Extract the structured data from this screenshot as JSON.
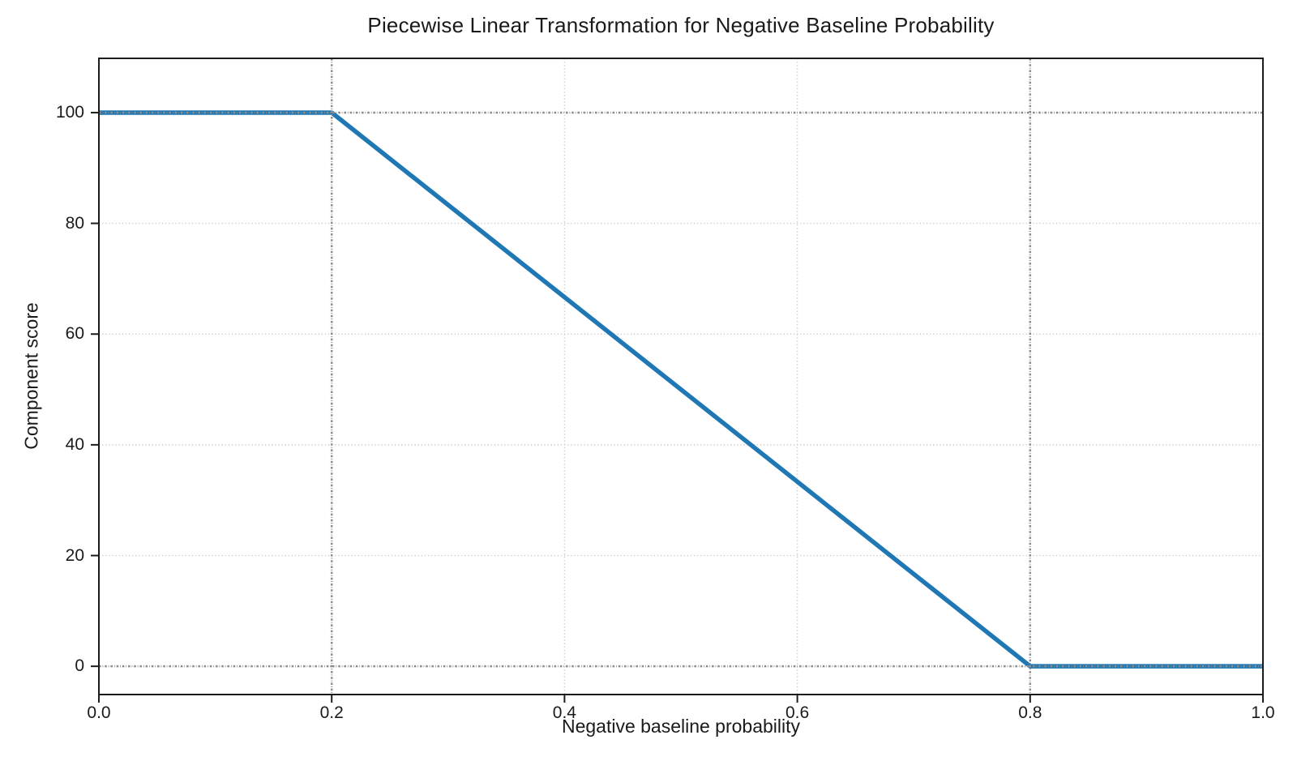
{
  "chart_data": {
    "type": "line",
    "title": "Piecewise Linear Transformation for Negative Baseline Probability",
    "xlabel": "Negative baseline probability",
    "ylabel": "Component score",
    "series": [
      {
        "name": "component_score",
        "x": [
          0.0,
          0.2,
          0.8,
          1.0
        ],
        "y": [
          100,
          100,
          0,
          0
        ],
        "color": "#1f77b4",
        "line_width": 5.5,
        "style": "solid"
      }
    ],
    "xlim": [
      0,
      1
    ],
    "ylim": [
      -5.1,
      109.8
    ],
    "x_ticks": [
      0.0,
      0.2,
      0.4,
      0.6,
      0.8,
      1.0
    ],
    "x_tick_labels": [
      "0.0",
      "0.2",
      "0.4",
      "0.6",
      "0.8",
      "1.0"
    ],
    "y_ticks": [
      0,
      20,
      40,
      60,
      80,
      100
    ],
    "y_tick_labels": [
      "0",
      "20",
      "40",
      "60",
      "80",
      "100"
    ],
    "grid": true,
    "grid_style": "dotted",
    "grid_color": "#c9c9c9",
    "reference_lines": {
      "vertical_x": [
        0.2,
        0.8
      ],
      "horizontal_y": [
        0,
        100
      ],
      "color": "#8d8d8d",
      "style": "dash-dot"
    },
    "spine_color": "#1c1c1c",
    "text_color": "#1a1a1a",
    "background_color": "#ffffff",
    "legend": "none"
  }
}
